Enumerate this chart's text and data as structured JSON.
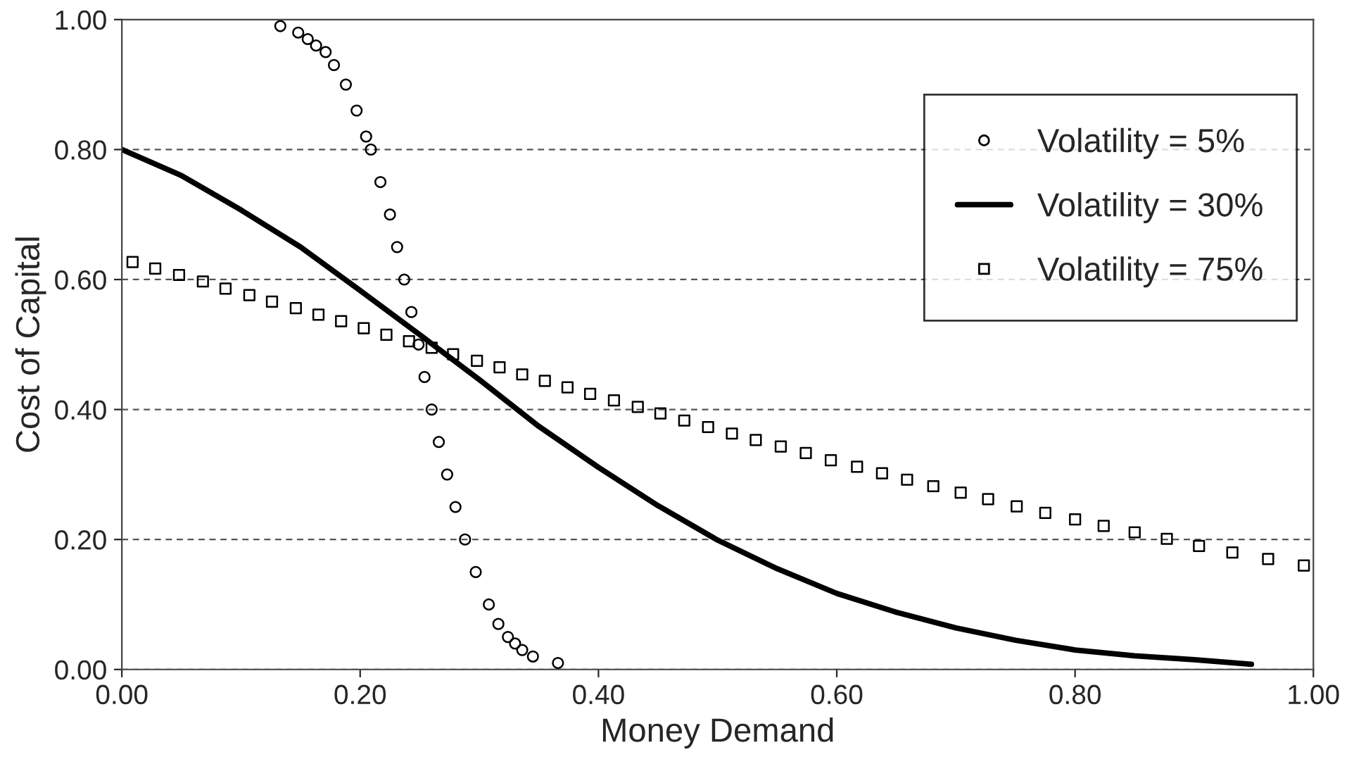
{
  "chart_data": {
    "type": "scatter",
    "xlabel": "Money Demand",
    "ylabel": "Cost of Capital",
    "xlim": [
      0,
      1
    ],
    "ylim": [
      0,
      1
    ],
    "xticks": [
      {
        "value": 0,
        "label": "0.00"
      },
      {
        "value": 0.2,
        "label": "0.20"
      },
      {
        "value": 0.4,
        "label": "0.40"
      },
      {
        "value": 0.6,
        "label": "0.60"
      },
      {
        "value": 0.8,
        "label": "0.80"
      },
      {
        "value": 1,
        "label": "1.00"
      }
    ],
    "yticks": [
      {
        "value": 0,
        "label": "0.00"
      },
      {
        "value": 0.2,
        "label": "0.20"
      },
      {
        "value": 0.4,
        "label": "0.40"
      },
      {
        "value": 0.6,
        "label": "0.60"
      },
      {
        "value": 0.8,
        "label": "0.80"
      },
      {
        "value": 1,
        "label": "1.00"
      }
    ],
    "grid": "y",
    "legend": "top right",
    "series": [
      {
        "name": "Volatility = 5%",
        "marker": "circle",
        "color": "#000000",
        "x": [
          0.133,
          0.148,
          0.156,
          0.163,
          0.171,
          0.178,
          0.188,
          0.197,
          0.205,
          0.209,
          0.217,
          0.225,
          0.231,
          0.237,
          0.243,
          0.249,
          0.254,
          0.26,
          0.266,
          0.273,
          0.28,
          0.288,
          0.297,
          0.308,
          0.316,
          0.324,
          0.33,
          0.336,
          0.345,
          0.366
        ],
        "values": [
          0.99,
          0.98,
          0.97,
          0.96,
          0.95,
          0.93,
          0.9,
          0.86,
          0.82,
          0.8,
          0.75,
          0.7,
          0.65,
          0.6,
          0.55,
          0.5,
          0.45,
          0.4,
          0.35,
          0.3,
          0.25,
          0.2,
          0.15,
          0.1,
          0.07,
          0.05,
          0.04,
          0.03,
          0.02,
          0.01
        ]
      },
      {
        "name": "Volatility = 30%",
        "type": "line",
        "marker": "none",
        "line_style": "solid",
        "color": "#000000",
        "x": [
          0,
          0.05,
          0.1,
          0.15,
          0.2,
          0.25,
          0.3,
          0.35,
          0.4,
          0.45,
          0.5,
          0.55,
          0.6,
          0.65,
          0.7,
          0.75,
          0.8,
          0.85,
          0.9,
          0.948
        ],
        "values": [
          0.8,
          0.76,
          0.707,
          0.65,
          0.583,
          0.515,
          0.446,
          0.374,
          0.311,
          0.252,
          0.199,
          0.155,
          0.117,
          0.088,
          0.064,
          0.045,
          0.03,
          0.021,
          0.015,
          0.008
        ]
      },
      {
        "name": "Volatility = 75%",
        "marker": "square",
        "color": "#000000",
        "x": [
          0.009,
          0.028,
          0.048,
          0.068,
          0.087,
          0.107,
          0.126,
          0.146,
          0.165,
          0.184,
          0.203,
          0.222,
          0.241,
          0.26,
          0.278,
          0.298,
          0.317,
          0.336,
          0.355,
          0.374,
          0.393,
          0.413,
          0.433,
          0.452,
          0.472,
          0.492,
          0.512,
          0.532,
          0.553,
          0.574,
          0.595,
          0.617,
          0.638,
          0.659,
          0.681,
          0.704,
          0.727,
          0.751,
          0.775,
          0.8,
          0.824,
          0.85,
          0.877,
          0.904,
          0.932,
          0.962,
          0.992
        ],
        "values": [
          0.627,
          0.617,
          0.607,
          0.597,
          0.586,
          0.576,
          0.566,
          0.556,
          0.546,
          0.536,
          0.525,
          0.515,
          0.505,
          0.495,
          0.485,
          0.475,
          0.465,
          0.454,
          0.444,
          0.434,
          0.424,
          0.414,
          0.404,
          0.394,
          0.383,
          0.373,
          0.363,
          0.353,
          0.343,
          0.333,
          0.322,
          0.312,
          0.302,
          0.292,
          0.282,
          0.272,
          0.262,
          0.251,
          0.241,
          0.231,
          0.221,
          0.211,
          0.201,
          0.19,
          0.18,
          0.17,
          0.16
        ]
      }
    ]
  }
}
